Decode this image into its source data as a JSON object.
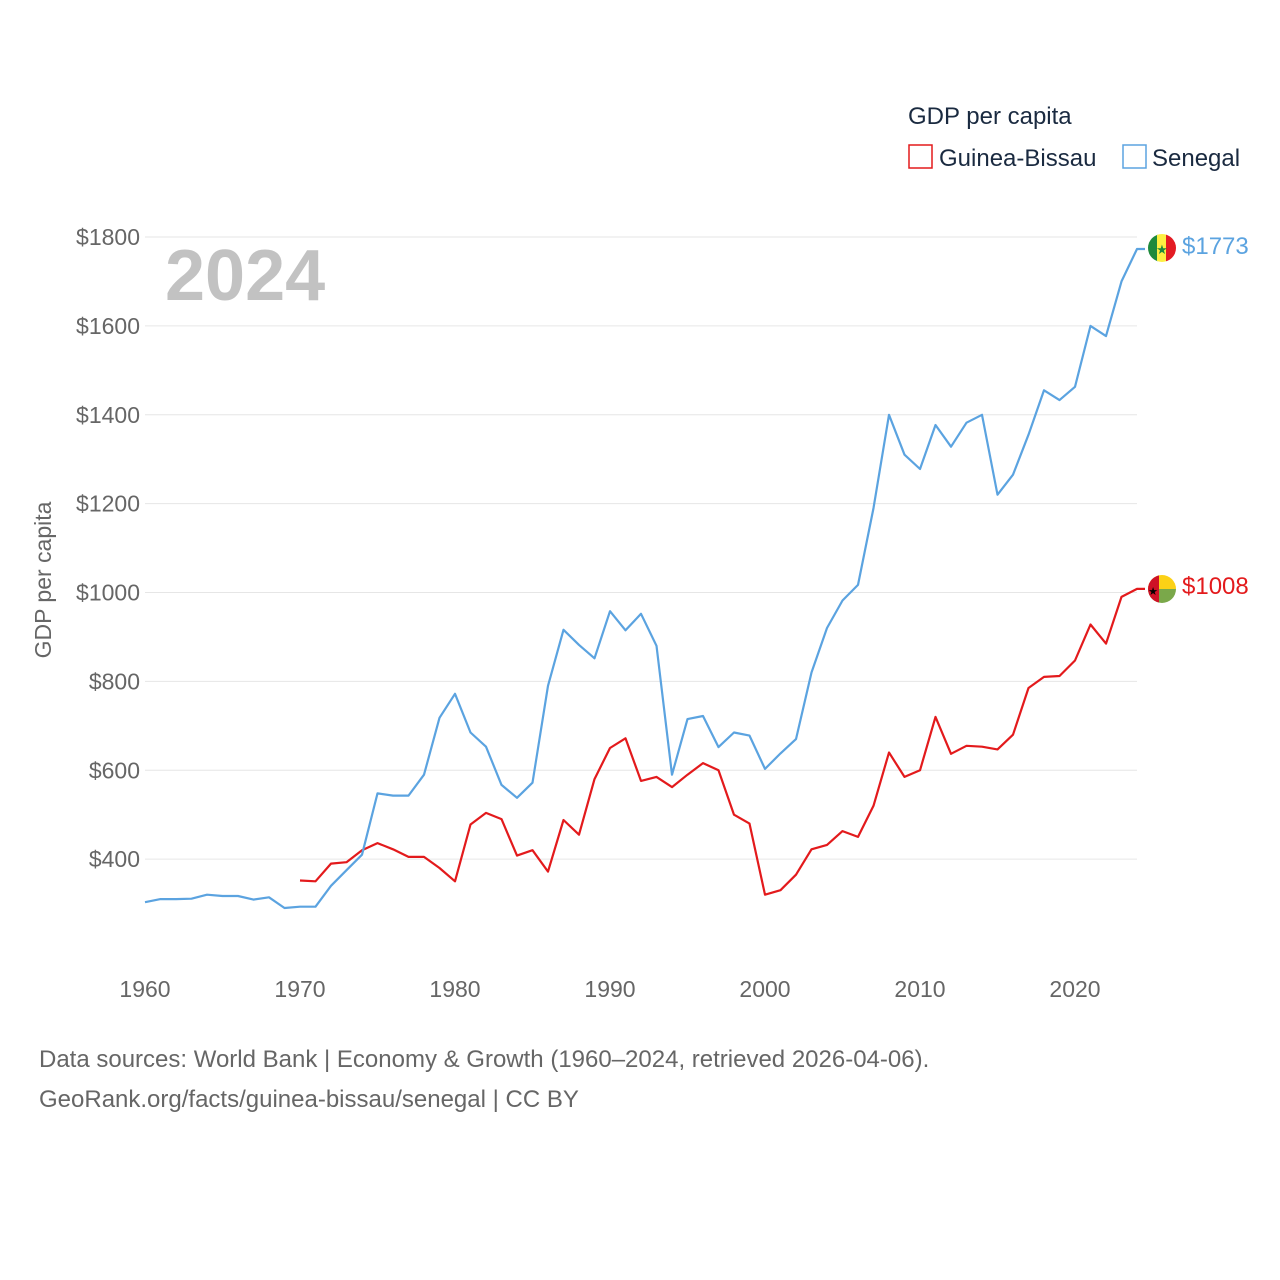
{
  "chart_data": {
    "type": "line",
    "title": "",
    "year_label": "2024",
    "ylabel": "GDP per capita",
    "xlabel": "",
    "xlim": [
      1960,
      2024
    ],
    "ylim": [
      200,
      1800
    ],
    "y_ticks": [
      {
        "value": 400,
        "label": "$400"
      },
      {
        "value": 600,
        "label": "$600"
      },
      {
        "value": 800,
        "label": "$800"
      },
      {
        "value": 1000,
        "label": "$1000"
      },
      {
        "value": 1200,
        "label": "$1200"
      },
      {
        "value": 1400,
        "label": "$1400"
      },
      {
        "value": 1600,
        "label": "$1600"
      },
      {
        "value": 1800,
        "label": "$1800"
      }
    ],
    "x_ticks": [
      {
        "value": 1960,
        "label": "1960"
      },
      {
        "value": 1970,
        "label": "1970"
      },
      {
        "value": 1980,
        "label": "1980"
      },
      {
        "value": 1990,
        "label": "1990"
      },
      {
        "value": 2000,
        "label": "2000"
      },
      {
        "value": 2010,
        "label": "2010"
      },
      {
        "value": 2020,
        "label": "2020"
      }
    ],
    "legend": {
      "title": "GDP per capita",
      "placement": "top-right"
    },
    "series": [
      {
        "name": "Guinea-Bissau",
        "color": "#e31a1c",
        "end_label": "$1008",
        "flag": "guinea-bissau-flag-icon",
        "start_year": 1970,
        "values": [
          352,
          350,
          390,
          393,
          420,
          436,
          422,
          405,
          405,
          380,
          350,
          478,
          504,
          490,
          408,
          420,
          372,
          488,
          455,
          580,
          650,
          672,
          576,
          585,
          562,
          590,
          616,
          600,
          500,
          480,
          320,
          330,
          365,
          422,
          432,
          463,
          450,
          520,
          640,
          585,
          600,
          720,
          637,
          655,
          653,
          647,
          680,
          785,
          810,
          812,
          847,
          928,
          885,
          990,
          1008
        ]
      },
      {
        "name": "Senegal",
        "color": "#5ba3e0",
        "end_label": "$1773",
        "flag": "senegal-flag-icon",
        "start_year": 1960,
        "values": [
          303,
          310,
          310,
          311,
          320,
          317,
          317,
          309,
          314,
          290,
          293,
          293,
          340,
          375,
          410,
          548,
          543,
          543,
          590,
          718,
          772,
          685,
          653,
          567,
          538,
          572,
          790,
          916,
          882,
          852,
          958,
          915,
          952,
          880,
          590,
          715,
          722,
          652,
          685,
          678,
          603,
          638,
          670,
          820,
          920,
          982,
          1017,
          1190,
          1400,
          1310,
          1278,
          1377,
          1328,
          1382,
          1400,
          1220,
          1265,
          1355,
          1455,
          1433,
          1463,
          1600,
          1577,
          1700,
          1773
        ]
      }
    ]
  },
  "footer": {
    "line1": "Data sources: World Bank | Economy & Growth (1960–2024, retrieved 2026-04-06).",
    "line2": "GeoRank.org/facts/guinea-bissau/senegal | CC BY"
  }
}
